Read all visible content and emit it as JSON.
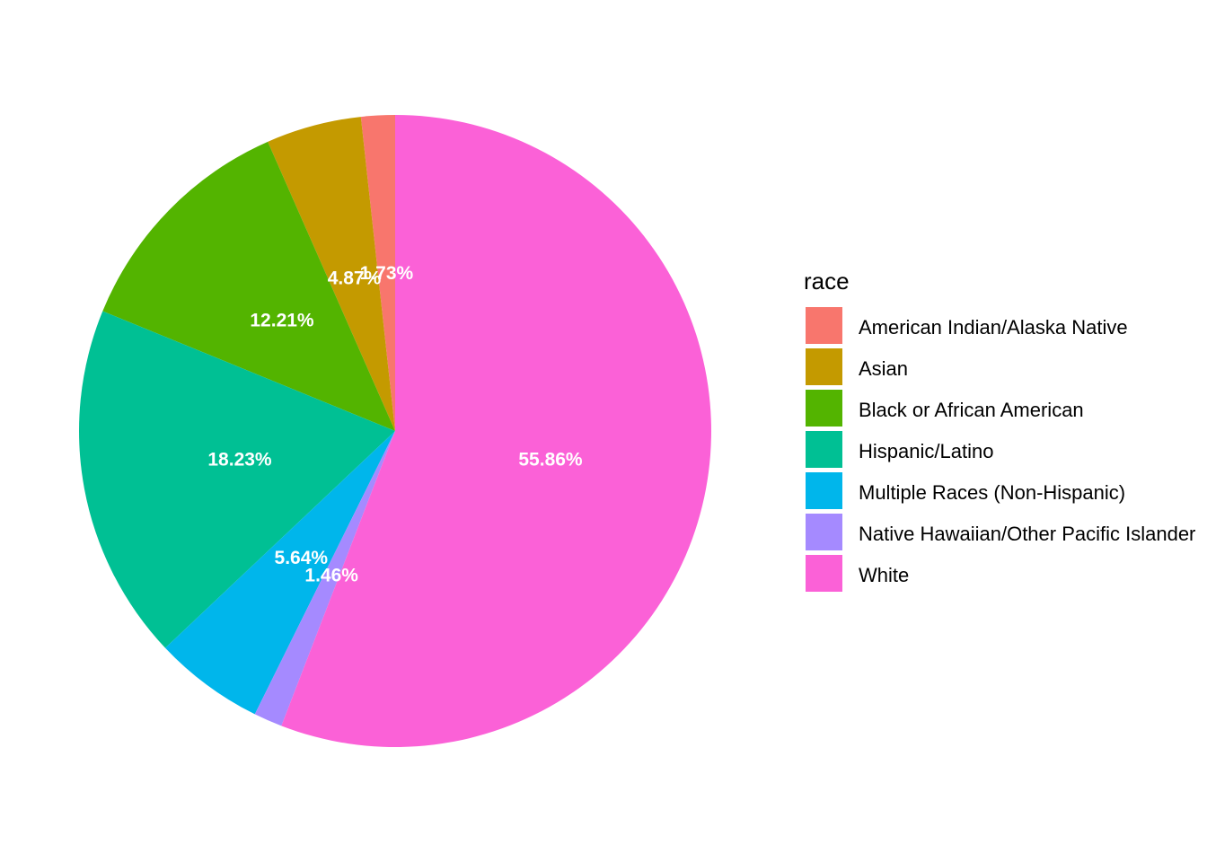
{
  "chart_data": {
    "type": "pie",
    "title": "",
    "legend_title": "race",
    "legend_position": "right",
    "direction": "counterclockwise-from-top",
    "slices": [
      {
        "name": "American Indian/Alaska Native",
        "value": 1.73,
        "label": "1.73%",
        "color": "#F8766D"
      },
      {
        "name": "Asian",
        "value": 4.87,
        "label": "4.87%",
        "color": "#C49A00"
      },
      {
        "name": "Black or African American",
        "value": 12.21,
        "label": "12.21%",
        "color": "#53B400"
      },
      {
        "name": "Hispanic/Latino",
        "value": 18.23,
        "label": "18.23%",
        "color": "#00C094"
      },
      {
        "name": "Multiple Races (Non-Hispanic)",
        "value": 5.64,
        "label": "5.64%",
        "color": "#00B6EB"
      },
      {
        "name": "Native Hawaiian/Other Pacific Islander",
        "value": 1.46,
        "label": "1.46%",
        "color": "#A58AFF"
      },
      {
        "name": "White",
        "value": 55.86,
        "label": "55.86%",
        "color": "#FB61D7"
      }
    ]
  }
}
